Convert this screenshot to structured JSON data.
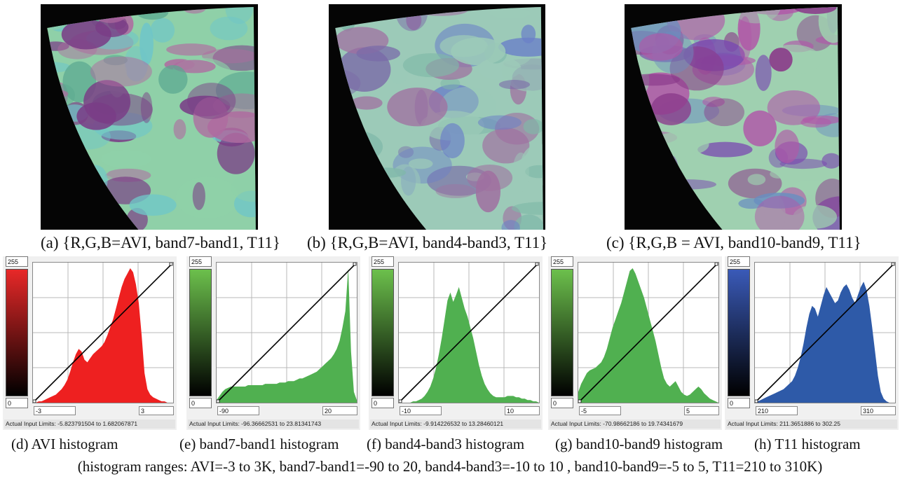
{
  "images": [
    {
      "caption": "(a) {R,G,B=AVI, band7-band1, T11}",
      "palette": [
        "#7a3d86",
        "#8fd0a8",
        "#6fc6c8",
        "#b06aa0",
        "#5aa890"
      ]
    },
    {
      "caption": "(b) {R,G,B=AVI, band4-band3, T11}",
      "palette": [
        "#7a6aa8",
        "#9ccab8",
        "#6a7fc8",
        "#a070a0",
        "#7fb8a8"
      ]
    },
    {
      "caption": "(c) {R,G,B = AVI, band10-band9, T11}",
      "palette": [
        "#8a3a8a",
        "#9fd0b0",
        "#7a4ab0",
        "#b058a8",
        "#6a8ec0"
      ]
    }
  ],
  "histograms": [
    {
      "caption": "(d) AVI histogram",
      "top_value": "255",
      "bottom_value": "0",
      "low_limit": "-3",
      "high_limit": "3",
      "actual_limits": "Actual Input Limits: -5.823791504 to 1.682067871",
      "color": "#ee2020",
      "gradient_top": "#e82828",
      "gradient_bottom": "#000000",
      "chart_data": {
        "type": "area",
        "x_range": [
          -3,
          3
        ],
        "values": [
          0,
          0,
          1,
          1,
          2,
          3,
          4,
          5,
          6,
          8,
          10,
          13,
          17,
          23,
          30,
          36,
          40,
          38,
          32,
          30,
          33,
          36,
          38,
          40,
          42,
          45,
          50,
          56,
          62,
          70,
          78,
          86,
          92,
          96,
          100,
          97,
          88,
          74,
          50,
          22,
          10,
          6,
          4,
          3,
          2,
          1,
          1,
          0,
          0,
          0
        ]
      }
    },
    {
      "caption": "(e) band7-band1 histogram",
      "top_value": "255",
      "bottom_value": "0",
      "low_limit": "-90",
      "high_limit": "20",
      "actual_limits": "Actual Input Limits: -96.36662531 to 23.81341743",
      "color": "#50b050",
      "gradient_top": "#6cc04c",
      "gradient_bottom": "#000000",
      "chart_data": {
        "type": "area",
        "x_range": [
          -90,
          20
        ],
        "values": [
          2,
          5,
          8,
          10,
          11,
          12,
          12,
          12,
          12,
          12,
          12,
          13,
          13,
          13,
          13,
          13,
          13,
          14,
          14,
          14,
          14,
          14,
          15,
          15,
          15,
          16,
          16,
          16,
          17,
          18,
          18,
          19,
          20,
          21,
          22,
          23,
          25,
          27,
          29,
          31,
          33,
          36,
          40,
          46,
          56,
          68,
          100,
          38,
          8,
          2
        ]
      }
    },
    {
      "caption": "(f) band4-band3 histogram",
      "top_value": "255",
      "bottom_value": "0",
      "low_limit": "-10",
      "high_limit": "10",
      "actual_limits": "Actual Input Limits: -9.914226532 to 13.28460121",
      "color": "#50b050",
      "gradient_top": "#6cc04c",
      "gradient_bottom": "#000000",
      "chart_data": {
        "type": "area",
        "x_range": [
          -10,
          10
        ],
        "values": [
          0,
          0,
          0,
          0,
          0,
          1,
          1,
          2,
          3,
          5,
          8,
          12,
          18,
          26,
          36,
          48,
          62,
          76,
          82,
          75,
          80,
          86,
          78,
          70,
          64,
          56,
          48,
          38,
          28,
          20,
          14,
          10,
          7,
          5,
          4,
          4,
          4,
          4,
          5,
          5,
          5,
          4,
          4,
          3,
          3,
          2,
          2,
          1,
          1,
          0
        ]
      }
    },
    {
      "caption": "(g) band10-band9 histogram",
      "top_value": "255",
      "bottom_value": "0",
      "low_limit": "-5",
      "high_limit": "5",
      "actual_limits": "Actual Input Limits: -70.98662186 to 19.74341679",
      "color": "#50b050",
      "gradient_top": "#6cc04c",
      "gradient_bottom": "#000000",
      "chart_data": {
        "type": "area",
        "x_range": [
          -5,
          5
        ],
        "values": [
          8,
          14,
          18,
          22,
          24,
          25,
          26,
          28,
          30,
          34,
          40,
          48,
          56,
          62,
          68,
          74,
          82,
          90,
          98,
          100,
          96,
          90,
          84,
          78,
          70,
          62,
          54,
          46,
          36,
          26,
          18,
          14,
          12,
          14,
          16,
          12,
          8,
          6,
          5,
          6,
          8,
          10,
          12,
          10,
          7,
          5,
          3,
          2,
          1,
          0
        ]
      }
    },
    {
      "caption": "(h) T11 histogram",
      "top_value": "255",
      "bottom_value": "0",
      "low_limit": "210",
      "high_limit": "310",
      "actual_limits": "Actual Input Limits: 211.3651886 to 302.25",
      "color": "#2e5aa8",
      "gradient_top": "#3a5ab8",
      "gradient_bottom": "#000000",
      "chart_data": {
        "type": "area",
        "x_range": [
          210,
          310
        ],
        "values": [
          0,
          1,
          2,
          3,
          4,
          5,
          6,
          7,
          8,
          9,
          10,
          12,
          14,
          16,
          20,
          26,
          34,
          44,
          56,
          66,
          72,
          70,
          64,
          72,
          80,
          86,
          82,
          78,
          74,
          76,
          82,
          86,
          88,
          84,
          78,
          74,
          80,
          86,
          90,
          84,
          72,
          56,
          38,
          20,
          8,
          3,
          1,
          0,
          0,
          0
        ]
      }
    }
  ],
  "range_note": "(histogram ranges: AVI=-3 to 3K, band7-band1=-90 to 20, band4-band3=-10 to 10 , band10-band9=-5 to 5, T11=210 to 310K)"
}
